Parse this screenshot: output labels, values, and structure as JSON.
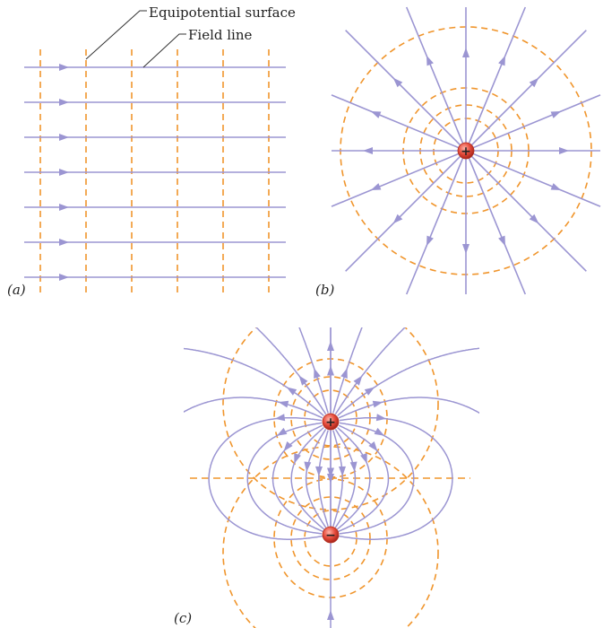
{
  "labels": {
    "equipotential": "Equipotential surface",
    "field_line": "Field line",
    "panel_a": "(a)",
    "panel_b": "(b)",
    "panel_c": "(c)",
    "plus_sign": "+",
    "minus_sign": "−"
  },
  "colors": {
    "field_line": "#9b95d2",
    "equipotential": "#f0952c",
    "charge": "#e74c3c",
    "callout": "#333333"
  }
}
